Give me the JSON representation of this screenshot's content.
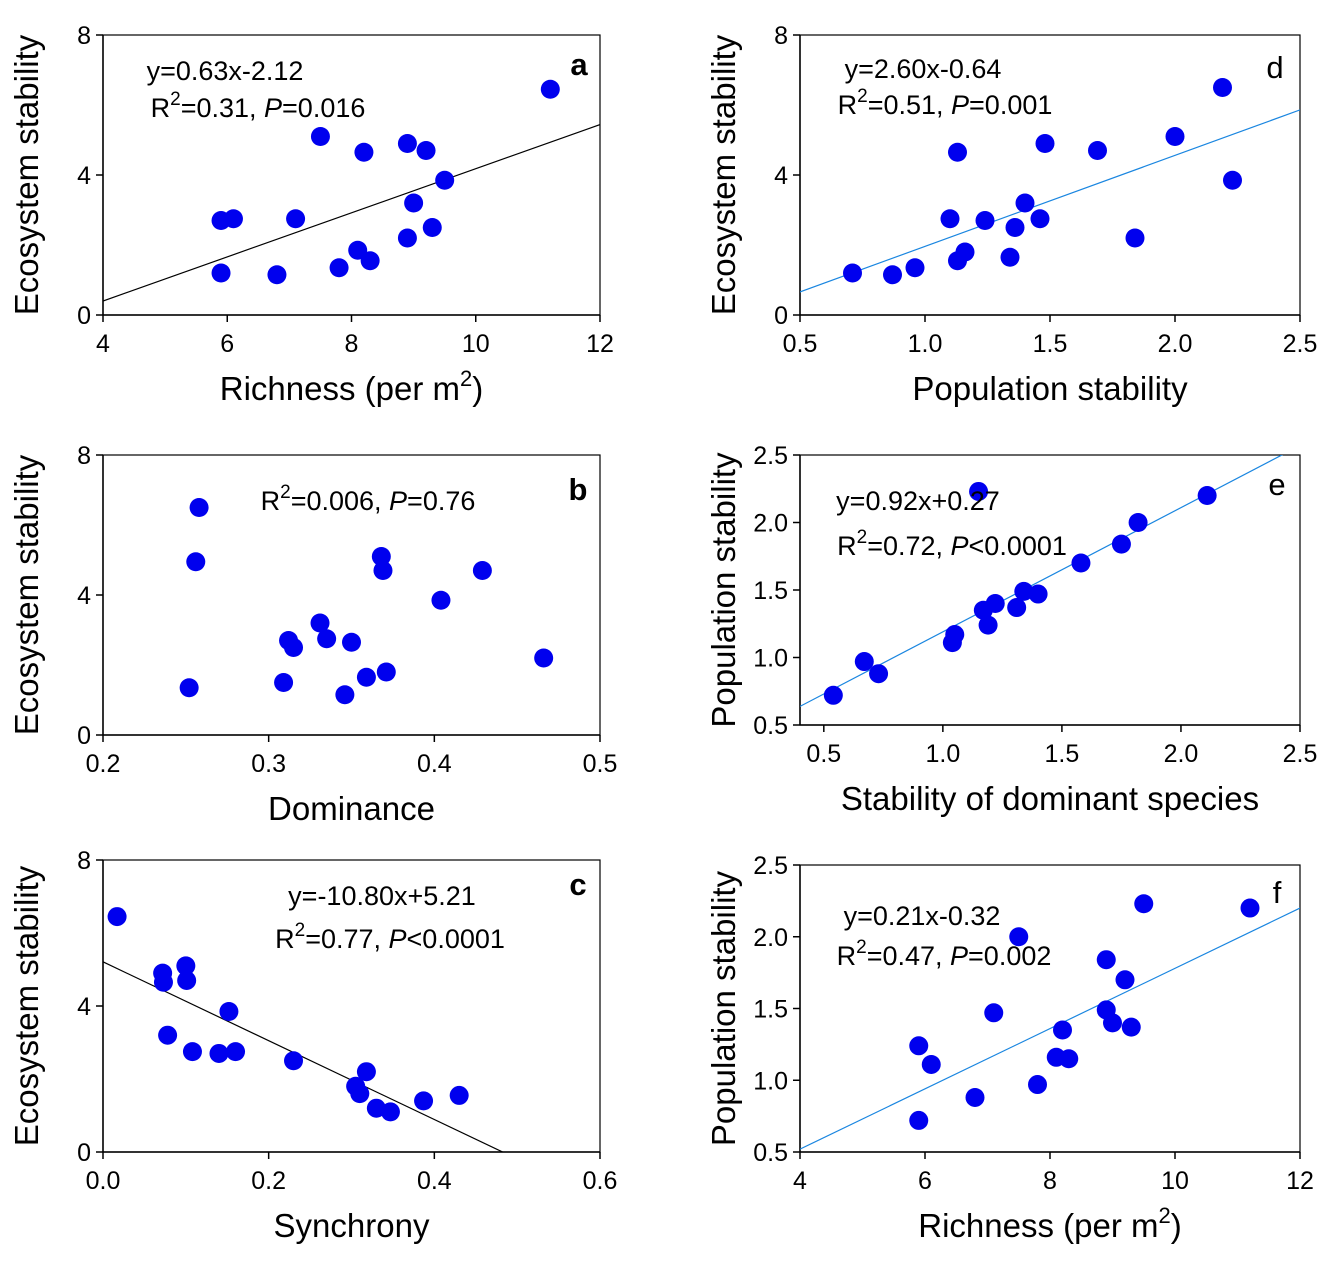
{
  "chart_data": [
    {
      "panel": "a",
      "type": "scatter",
      "xlabel": "Richness (per m",
      "xlabel_sup": "2",
      "xlabel_tail": ")",
      "ylabel": "Ecosystem stability",
      "xlim": [
        4,
        12
      ],
      "ylim": [
        0,
        8
      ],
      "xticks": [
        "4",
        "6",
        "8",
        "10",
        "12"
      ],
      "yticks": [
        "0",
        "4",
        "8"
      ],
      "equation": "y=0.63x-2.12",
      "r2_prefix": "R",
      "r2_sup": "2",
      "r2_value": "=0.31, ",
      "p_label": "P",
      "p_value": "=0.016",
      "fit": {
        "slope": 0.63,
        "intercept": -2.12,
        "color": "#000000"
      },
      "points": [
        [
          5.9,
          2.7
        ],
        [
          6.1,
          2.75
        ],
        [
          5.9,
          1.2
        ],
        [
          6.8,
          1.15
        ],
        [
          7.1,
          2.75
        ],
        [
          7.5,
          5.1
        ],
        [
          7.8,
          1.35
        ],
        [
          8.1,
          1.85
        ],
        [
          8.2,
          4.65
        ],
        [
          8.3,
          1.55
        ],
        [
          8.9,
          4.9
        ],
        [
          8.9,
          2.2
        ],
        [
          9.0,
          3.2
        ],
        [
          9.2,
          4.7
        ],
        [
          9.3,
          2.5
        ],
        [
          9.5,
          3.85
        ],
        [
          11.2,
          6.45
        ]
      ]
    },
    {
      "panel": "b",
      "type": "scatter",
      "xlabel": "Dominance",
      "ylabel": "Ecosystem stability",
      "xlim": [
        0.2,
        0.5
      ],
      "ylim": [
        0,
        8
      ],
      "xticks": [
        "0.2",
        "0.3",
        "0.4",
        "0.5"
      ],
      "yticks": [
        "0",
        "4",
        "8"
      ],
      "equation": "",
      "r2_prefix": "R",
      "r2_sup": "2",
      "r2_value": "=0.006, ",
      "p_label": "P",
      "p_value": "=0.76",
      "fit": null,
      "points": [
        [
          0.252,
          1.35
        ],
        [
          0.256,
          4.95
        ],
        [
          0.258,
          6.5
        ],
        [
          0.309,
          1.5
        ],
        [
          0.312,
          2.7
        ],
        [
          0.315,
          2.5
        ],
        [
          0.331,
          3.2
        ],
        [
          0.335,
          2.75
        ],
        [
          0.346,
          1.15
        ],
        [
          0.35,
          2.65
        ],
        [
          0.359,
          1.65
        ],
        [
          0.368,
          5.1
        ],
        [
          0.369,
          4.7
        ],
        [
          0.371,
          1.8
        ],
        [
          0.404,
          3.85
        ],
        [
          0.429,
          4.7
        ],
        [
          0.466,
          2.2
        ]
      ]
    },
    {
      "panel": "c",
      "type": "scatter",
      "xlabel": "Synchrony",
      "ylabel": "Ecosystem stability",
      "xlim": [
        0.0,
        0.6
      ],
      "ylim": [
        0,
        8
      ],
      "xticks": [
        "0.0",
        "0.2",
        "0.4",
        "0.6"
      ],
      "yticks": [
        "0",
        "4",
        "8"
      ],
      "equation": "y=-10.80x+5.21",
      "r2_prefix": "R",
      "r2_sup": "2",
      "r2_value": "=0.77, ",
      "p_label": "P",
      "p_value": "<0.0001",
      "fit": {
        "slope": -10.8,
        "intercept": 5.21,
        "color": "#000000"
      },
      "points": [
        [
          0.017,
          6.45
        ],
        [
          0.072,
          4.9
        ],
        [
          0.073,
          4.65
        ],
        [
          0.078,
          3.2
        ],
        [
          0.1,
          5.1
        ],
        [
          0.101,
          4.7
        ],
        [
          0.108,
          2.75
        ],
        [
          0.14,
          2.7
        ],
        [
          0.152,
          3.85
        ],
        [
          0.16,
          2.75
        ],
        [
          0.23,
          2.5
        ],
        [
          0.305,
          1.8
        ],
        [
          0.31,
          1.6
        ],
        [
          0.318,
          2.2
        ],
        [
          0.33,
          1.2
        ],
        [
          0.347,
          1.1
        ],
        [
          0.387,
          1.4
        ],
        [
          0.43,
          1.55
        ]
      ]
    },
    {
      "panel": "d",
      "type": "scatter",
      "xlabel": "Population stability",
      "ylabel": "Ecosystem stability",
      "xlim": [
        0.5,
        2.5
      ],
      "ylim": [
        0,
        8
      ],
      "xticks": [
        "0.5",
        "1.0",
        "1.5",
        "2.0",
        "2.5"
      ],
      "yticks": [
        "0",
        "4",
        "8"
      ],
      "equation": "y=2.60x-0.64",
      "r2_prefix": "R",
      "r2_sup": "2",
      "r2_value": "=0.51, ",
      "p_label": "P",
      "p_value": "=0.001",
      "fit": {
        "slope": 2.6,
        "intercept": -0.64,
        "color": "#1a86e0"
      },
      "points": [
        [
          0.71,
          1.2
        ],
        [
          0.87,
          1.15
        ],
        [
          0.96,
          1.35
        ],
        [
          1.1,
          2.75
        ],
        [
          1.13,
          1.55
        ],
        [
          1.13,
          4.65
        ],
        [
          1.16,
          1.8
        ],
        [
          1.24,
          2.7
        ],
        [
          1.34,
          1.65
        ],
        [
          1.36,
          2.5
        ],
        [
          1.4,
          3.2
        ],
        [
          1.46,
          2.75
        ],
        [
          1.48,
          4.9
        ],
        [
          1.69,
          4.7
        ],
        [
          1.84,
          2.2
        ],
        [
          2.0,
          5.1
        ],
        [
          2.19,
          6.5
        ],
        [
          2.23,
          3.85
        ]
      ]
    },
    {
      "panel": "e",
      "type": "scatter",
      "xlabel": "Stability of dominant species",
      "ylabel": "Population stability",
      "xlim": [
        0.4,
        2.5
      ],
      "ylim": [
        0.5,
        2.5
      ],
      "xticks": [
        "0.5",
        "1.0",
        "1.5",
        "2.0",
        "2.5"
      ],
      "yticks": [
        "0.5",
        "1.0",
        "1.5",
        "2.0",
        "2.5"
      ],
      "equation": "y=0.92x+0.27",
      "r2_prefix": "R",
      "r2_sup": "2",
      "r2_value": "=0.72, ",
      "p_label": "P",
      "p_value": "<0.0001",
      "fit": {
        "slope": 0.92,
        "intercept": 0.27,
        "color": "#1a86e0"
      },
      "points": [
        [
          0.54,
          0.72
        ],
        [
          0.67,
          0.97
        ],
        [
          0.73,
          0.88
        ],
        [
          1.04,
          1.11
        ],
        [
          1.05,
          1.17
        ],
        [
          1.15,
          2.23
        ],
        [
          1.17,
          1.35
        ],
        [
          1.19,
          1.24
        ],
        [
          1.22,
          1.4
        ],
        [
          1.31,
          1.37
        ],
        [
          1.34,
          1.49
        ],
        [
          1.4,
          1.47
        ],
        [
          1.58,
          1.7
        ],
        [
          1.75,
          1.84
        ],
        [
          1.82,
          2.0
        ],
        [
          2.11,
          2.2
        ]
      ]
    },
    {
      "panel": "f",
      "type": "scatter",
      "xlabel": "Richness  (per m",
      "xlabel_sup": "2",
      "xlabel_tail": ")",
      "ylabel": "Population stability",
      "xlim": [
        4,
        12
      ],
      "ylim": [
        0.5,
        2.5
      ],
      "xticks": [
        "4",
        "6",
        "8",
        "10",
        "12"
      ],
      "yticks": [
        "0.5",
        "1.0",
        "1.5",
        "2.0",
        "2.5"
      ],
      "equation": "y=0.21x-0.32",
      "r2_prefix": "R",
      "r2_sup": "2",
      "r2_value": "=0.47, ",
      "p_label": "P",
      "p_value": "=0.002",
      "fit": {
        "slope": 0.21,
        "intercept": -0.32,
        "color": "#1a86e0"
      },
      "points": [
        [
          5.9,
          0.72
        ],
        [
          5.9,
          1.24
        ],
        [
          6.1,
          1.11
        ],
        [
          6.8,
          0.88
        ],
        [
          7.1,
          1.47
        ],
        [
          7.5,
          2.0
        ],
        [
          7.8,
          0.97
        ],
        [
          8.1,
          1.16
        ],
        [
          8.2,
          1.35
        ],
        [
          8.3,
          1.15
        ],
        [
          8.9,
          1.84
        ],
        [
          8.9,
          1.49
        ],
        [
          9.0,
          1.4
        ],
        [
          9.2,
          1.7
        ],
        [
          9.3,
          1.37
        ],
        [
          9.5,
          2.23
        ],
        [
          11.2,
          2.2
        ]
      ]
    }
  ],
  "style": {
    "point_color": "#0000ee"
  }
}
